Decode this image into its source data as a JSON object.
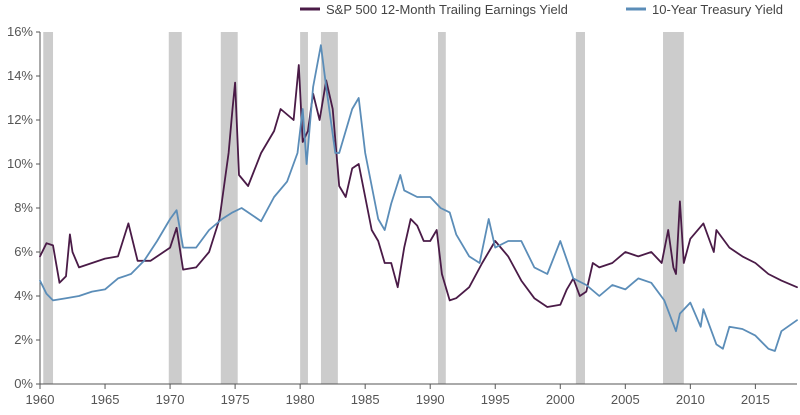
{
  "chart_data": {
    "type": "line",
    "title": "",
    "xlabel": "",
    "ylabel": "",
    "xlim": [
      1960,
      2018.2
    ],
    "ylim": [
      0,
      16
    ],
    "x_ticks": [
      1960,
      1965,
      1970,
      1975,
      1980,
      1985,
      1990,
      1995,
      2000,
      2005,
      2010,
      2015
    ],
    "x_tick_labels": [
      "1960",
      "1965",
      "1970",
      "1975",
      "1980",
      "1985",
      "1990",
      "1995",
      "2000",
      "2005",
      "2010",
      "2015"
    ],
    "y_ticks": [
      0,
      2,
      4,
      6,
      8,
      10,
      12,
      14,
      16
    ],
    "y_tick_labels": [
      "0%",
      "2%",
      "4%",
      "6%",
      "8%",
      "10%",
      "12%",
      "14%",
      "16%"
    ],
    "grid": false,
    "legend": "top",
    "recessions": [
      [
        1960.25,
        1961.0
      ],
      [
        1969.9,
        1970.9
      ],
      [
        1973.9,
        1975.2
      ],
      [
        1980.0,
        1980.6
      ],
      [
        1981.6,
        1982.9
      ],
      [
        1990.6,
        1991.2
      ],
      [
        2001.2,
        2001.9
      ],
      [
        2007.9,
        2009.5
      ]
    ],
    "series": [
      {
        "name": "S&P 500 12-Month Trailing Earnings Yield",
        "color": "#4a1b47",
        "x": [
          1960,
          1960.5,
          1961,
          1961.5,
          1962,
          1962.3,
          1962.5,
          1963,
          1964,
          1965,
          1966,
          1966.8,
          1967.5,
          1968.5,
          1969.5,
          1970,
          1970.5,
          1971,
          1972,
          1973,
          1973.8,
          1974.5,
          1974.8,
          1975.0,
          1975.3,
          1976,
          1977,
          1978,
          1978.5,
          1979.5,
          1979.9,
          1980.2,
          1980.6,
          1981,
          1981.5,
          1982,
          1982.5,
          1983,
          1983.5,
          1984,
          1984.5,
          1985,
          1985.5,
          1986,
          1986.5,
          1987,
          1987.5,
          1988,
          1988.5,
          1989,
          1989.5,
          1990,
          1990.5,
          1990.9,
          1991.5,
          1992,
          1993,
          1994,
          1995,
          1996,
          1997,
          1998,
          1999,
          2000,
          2000.5,
          2001,
          2001.5,
          2002,
          2002.5,
          2003,
          2004,
          2005,
          2006,
          2007,
          2007.8,
          2008.3,
          2008.7,
          2008.9,
          2009.2,
          2009.5,
          2010,
          2011,
          2011.8,
          2012,
          2013,
          2014,
          2015,
          2016,
          2017,
          2018.2
        ],
        "values": [
          5.8,
          6.4,
          6.3,
          4.6,
          4.9,
          6.8,
          6.0,
          5.3,
          5.5,
          5.7,
          5.8,
          7.3,
          5.6,
          5.6,
          6.0,
          6.2,
          7.1,
          5.2,
          5.3,
          6.0,
          7.5,
          10.5,
          12.5,
          13.7,
          9.5,
          9.0,
          10.5,
          11.5,
          12.5,
          12.0,
          14.5,
          11.0,
          11.5,
          13.2,
          12.0,
          13.8,
          12.5,
          9.0,
          8.5,
          9.8,
          10.0,
          8.5,
          7.0,
          6.5,
          5.5,
          5.5,
          4.4,
          6.2,
          7.5,
          7.2,
          6.5,
          6.5,
          7.0,
          5.0,
          3.8,
          3.9,
          4.4,
          5.5,
          6.5,
          5.8,
          4.7,
          3.9,
          3.5,
          3.6,
          4.3,
          4.8,
          4.0,
          4.2,
          5.5,
          5.3,
          5.5,
          6.0,
          5.8,
          6.0,
          5.5,
          7.0,
          5.3,
          5.0,
          8.3,
          5.5,
          6.6,
          7.3,
          6.0,
          7.0,
          6.2,
          5.8,
          5.5,
          5.0,
          4.7,
          4.4
        ]
      },
      {
        "name": "10-Year Treasury Yield",
        "color": "#5b8db8",
        "x": [
          1960,
          1960.5,
          1961,
          1962,
          1963,
          1964,
          1965,
          1966,
          1967,
          1968,
          1969,
          1970,
          1970.5,
          1971,
          1972,
          1973,
          1974,
          1974.8,
          1975.5,
          1976,
          1977,
          1978,
          1979,
          1979.8,
          1980.2,
          1980.5,
          1981,
          1981.6,
          1982,
          1982.7,
          1983,
          1984,
          1984.5,
          1985,
          1986,
          1986.5,
          1987,
          1987.7,
          1988,
          1989,
          1990,
          1990.8,
          1991.5,
          1992,
          1993,
          1993.8,
          1994.5,
          1995,
          1996,
          1997,
          1998,
          1999,
          2000,
          2001,
          2002,
          2003,
          2004,
          2005,
          2006,
          2007,
          2008,
          2008.9,
          2009.2,
          2010,
          2010.8,
          2011,
          2012,
          2012.5,
          2013,
          2014,
          2015,
          2016,
          2016.5,
          2017,
          2018.2
        ],
        "values": [
          4.7,
          4.1,
          3.8,
          3.9,
          4.0,
          4.2,
          4.3,
          4.8,
          5.0,
          5.6,
          6.5,
          7.5,
          7.9,
          6.2,
          6.2,
          7.0,
          7.5,
          7.8,
          8.0,
          7.8,
          7.4,
          8.5,
          9.2,
          10.5,
          12.5,
          10.0,
          13.5,
          15.4,
          13.5,
          10.5,
          10.5,
          12.5,
          13.0,
          10.5,
          7.5,
          7.0,
          8.2,
          9.5,
          8.8,
          8.5,
          8.5,
          8.0,
          7.8,
          6.8,
          5.8,
          5.5,
          7.5,
          6.2,
          6.5,
          6.5,
          5.3,
          5.0,
          6.5,
          4.8,
          4.5,
          4.0,
          4.5,
          4.3,
          4.8,
          4.6,
          3.8,
          2.4,
          3.2,
          3.7,
          2.6,
          3.4,
          1.8,
          1.6,
          2.6,
          2.5,
          2.2,
          1.6,
          1.5,
          2.4,
          2.9
        ]
      }
    ]
  }
}
